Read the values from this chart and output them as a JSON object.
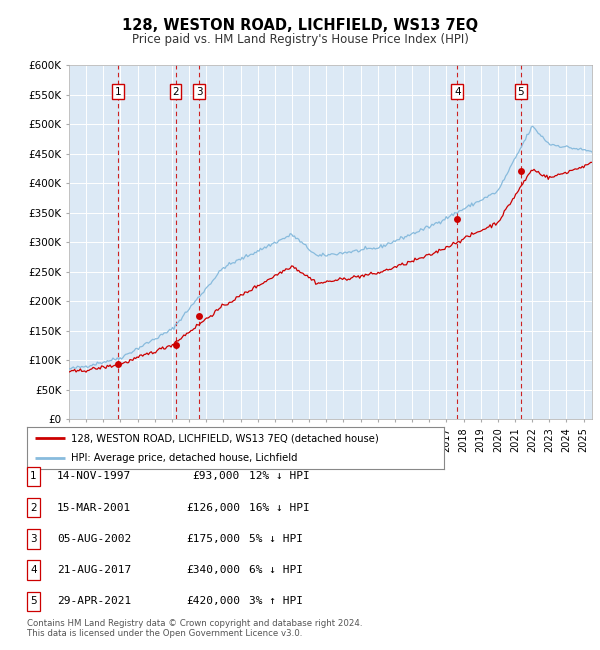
{
  "title": "128, WESTON ROAD, LICHFIELD, WS13 7EQ",
  "subtitle": "Price paid vs. HM Land Registry's House Price Index (HPI)",
  "ylabel_ticks": [
    "£0",
    "£50K",
    "£100K",
    "£150K",
    "£200K",
    "£250K",
    "£300K",
    "£350K",
    "£400K",
    "£450K",
    "£500K",
    "£550K",
    "£600K"
  ],
  "ytick_values": [
    0,
    50000,
    100000,
    150000,
    200000,
    250000,
    300000,
    350000,
    400000,
    450000,
    500000,
    550000,
    600000
  ],
  "xlim_start": 1995.0,
  "xlim_end": 2025.5,
  "ylim_min": 0,
  "ylim_max": 600000,
  "background_color": "#dce9f5",
  "grid_color": "#ffffff",
  "hpi_line_color": "#88bbdd",
  "price_line_color": "#cc0000",
  "sale_marker_color": "#cc0000",
  "vline_color": "#cc2222",
  "legend_label_price": "128, WESTON ROAD, LICHFIELD, WS13 7EQ (detached house)",
  "legend_label_hpi": "HPI: Average price, detached house, Lichfield",
  "sales": [
    {
      "num": 1,
      "date_dec": 1997.87,
      "price": 93000
    },
    {
      "num": 2,
      "date_dec": 2001.21,
      "price": 126000
    },
    {
      "num": 3,
      "date_dec": 2002.59,
      "price": 175000
    },
    {
      "num": 4,
      "date_dec": 2017.64,
      "price": 340000
    },
    {
      "num": 5,
      "date_dec": 2021.33,
      "price": 420000
    }
  ],
  "footer_line1": "Contains HM Land Registry data © Crown copyright and database right 2024.",
  "footer_line2": "This data is licensed under the Open Government Licence v3.0.",
  "table_rows": [
    {
      "num": 1,
      "date": "14-NOV-1997",
      "price": "£93,000",
      "pct": "12% ↓ HPI"
    },
    {
      "num": 2,
      "date": "15-MAR-2001",
      "price": "£126,000",
      "pct": "16% ↓ HPI"
    },
    {
      "num": 3,
      "date": "05-AUG-2002",
      "price": "£175,000",
      "pct": "5% ↓ HPI"
    },
    {
      "num": 4,
      "date": "21-AUG-2017",
      "price": "£340,000",
      "pct": "6% ↓ HPI"
    },
    {
      "num": 5,
      "date": "29-APR-2021",
      "price": "£420,000",
      "pct": "3% ↑ HPI"
    }
  ]
}
